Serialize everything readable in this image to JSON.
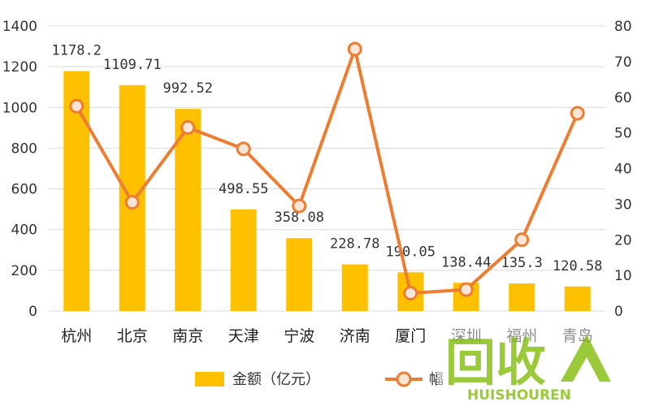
{
  "chart_data": {
    "type": "bar",
    "categories": [
      "杭州",
      "北京",
      "南京",
      "天津",
      "宁波",
      "济南",
      "厦门",
      "深圳",
      "福州",
      "青岛"
    ],
    "series": [
      {
        "name": "金额（亿元）",
        "type": "bar",
        "axis": "left",
        "color": "#FFC000",
        "values": [
          1178.2,
          1109.71,
          992.52,
          498.55,
          358.08,
          228.78,
          190.05,
          138.44,
          135.3,
          120.58
        ],
        "data_labels": [
          "1178.2",
          "1109.71",
          "992.52",
          "498.55",
          "358.08",
          "228.78",
          "190.05",
          "138.44",
          "135.3",
          "120.58"
        ]
      },
      {
        "name": "幅",
        "type": "line",
        "axis": "right",
        "color": "#ED7D31",
        "marker_fill": "#FBE5D6",
        "values": [
          57.5,
          30.5,
          51.5,
          45.5,
          29.5,
          73.5,
          5.0,
          6.0,
          20.0,
          55.5
        ]
      }
    ],
    "y_left": {
      "ylim": [
        0,
        1400
      ],
      "ticks": [
        "0",
        "200",
        "400",
        "600",
        "800",
        "1000",
        "1200",
        "1400"
      ]
    },
    "y_right": {
      "ylim": [
        0,
        80
      ],
      "ticks": [
        "0",
        "10",
        "20",
        "30",
        "40",
        "50",
        "60",
        "70",
        "80"
      ]
    },
    "grid": true,
    "legend": "bottom"
  },
  "watermark": {
    "text": "回收",
    "subtext": "HUISHOUREN",
    "color": "#8DC21F"
  }
}
